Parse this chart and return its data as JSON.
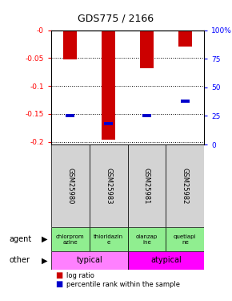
{
  "title": "GDS775 / 2166",
  "samples": [
    "GSM25980",
    "GSM25983",
    "GSM25981",
    "GSM25982"
  ],
  "log_ratios": [
    -0.052,
    -0.197,
    -0.068,
    -0.03
  ],
  "percentile_ranks": [
    25,
    18,
    25,
    38
  ],
  "ylim_left": [
    -0.205,
    0.0
  ],
  "yticks_left": [
    0,
    -0.05,
    -0.1,
    -0.15,
    -0.2
  ],
  "ytick_labels_left": [
    "-0",
    "-0.05",
    "-0.1",
    "-0.15",
    "-0.2"
  ],
  "ytick_labels_right": [
    "0",
    "25",
    "50",
    "75",
    "100%"
  ],
  "yticks_right_pct": [
    0,
    25,
    50,
    75,
    100
  ],
  "agent_labels": [
    "chlorprom\nazine",
    "thioridazin\ne",
    "olanzap\nine",
    "quetiapi\nne"
  ],
  "bar_color": "#CC0000",
  "percentile_color": "#0000CC",
  "sample_bg": "#D3D3D3",
  "agent_bg": "#90EE90",
  "typical_color": "#FF80FF",
  "atypical_color": "#FF00FF"
}
